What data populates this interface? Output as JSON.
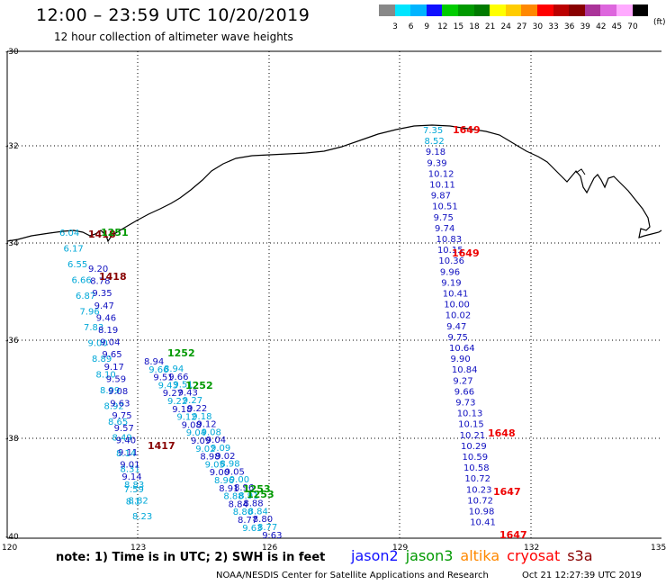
{
  "header": {
    "title": "12:00 – 23:59 UTC 10/20/2019",
    "subtitle": "12 hour collection of altimeter wave heights"
  },
  "colorbar": {
    "unit": "(ft)",
    "bins": [
      {
        "color": "#888888",
        "label": "3"
      },
      {
        "color": "#00e5ff",
        "label": "6"
      },
      {
        "color": "#00b4ff",
        "label": "9"
      },
      {
        "color": "#1010ff",
        "label": "12"
      },
      {
        "color": "#00cc00",
        "label": "15"
      },
      {
        "color": "#009900",
        "label": "18"
      },
      {
        "color": "#007a00",
        "label": "21"
      },
      {
        "color": "#ffff00",
        "label": "24"
      },
      {
        "color": "#ffcc00",
        "label": "27"
      },
      {
        "color": "#ff8800",
        "label": "30"
      },
      {
        "color": "#ff0000",
        "label": "33"
      },
      {
        "color": "#bb0000",
        "label": "36"
      },
      {
        "color": "#880000",
        "label": "39"
      },
      {
        "color": "#aa3399",
        "label": "42"
      },
      {
        "color": "#dd66dd",
        "label": "45"
      },
      {
        "color": "#ffaaff",
        "label": "70"
      },
      {
        "color": "#000000",
        "label": ""
      }
    ]
  },
  "map": {
    "lat_labels": [
      "-30",
      "-32",
      "-34",
      "-36",
      "-38",
      "-40"
    ],
    "lon_labels": [
      "120",
      "123",
      "126",
      "129",
      "132",
      "135"
    ]
  },
  "tracks": {
    "east_values": [
      "7.35",
      "8.52",
      "9.18",
      "9.39",
      "10.12",
      "10.11",
      "9.87",
      "10.51",
      "9.75",
      "9.74",
      "10.83",
      "10.15",
      "10.36",
      "9.96",
      "9.19",
      "10.41",
      "10.00",
      "10.02",
      "9.47",
      "9.75",
      "10.64",
      "9.90",
      "10.84",
      "9.27",
      "9.66",
      "9.73",
      "10.13",
      "10.15",
      "10.21",
      "10.29",
      "10.59",
      "10.58",
      "10.72",
      "10.23",
      "10.72",
      "10.98",
      "10.41"
    ],
    "east_times": [
      "1649",
      "1649",
      "1648",
      "1647",
      "1647"
    ],
    "west_cyan_values": [
      "6.04",
      "6.17",
      "6.55",
      "6.66",
      "6.87",
      "7.96",
      "7.83",
      "9.00",
      "8.89",
      "8.10",
      "8.99",
      "8.92",
      "8.65",
      "8.49",
      "8.14",
      "8.31",
      "8.83",
      "8.82",
      "8.23"
    ],
    "west_blue_values": [
      "9.20",
      "8.78",
      "9.35",
      "9.47",
      "9.46",
      "8.19",
      "9.04",
      "9.65",
      "9.17",
      "9.59",
      "9.08",
      "9.63",
      "9.75",
      "9.57",
      "9.40",
      "9.11",
      "9.01",
      "9.14",
      "7.59",
      "8.1"
    ],
    "west_times": [
      "1418",
      "1251",
      "1418",
      "1252",
      "1252",
      "1417",
      "1253",
      "1253"
    ],
    "diag_values": [
      "8.94",
      "9.66",
      "9.51",
      "9.43",
      "9.27",
      "9.22",
      "9.18",
      "9.12",
      "9.08",
      "9.04",
      "9.09",
      "9.02",
      "8.98",
      "9.05",
      "9.00",
      "8.96",
      "8.91",
      "8.88",
      "8.84",
      "8.80",
      "8.77",
      "9.63"
    ]
  },
  "footer": {
    "note": "note: 1) Time is in UTC; 2) SWH is in feet",
    "satellites": [
      {
        "name": "jason2",
        "color": "#1010ff"
      },
      {
        "name": "jason3",
        "color": "#009900"
      },
      {
        "name": "altika",
        "color": "#ff8800"
      },
      {
        "name": "cryosat",
        "color": "#ff0000"
      },
      {
        "name": "s3a",
        "color": "#880000"
      }
    ],
    "credit": "NOAA/NESDIS Center for Satellite Applications and Research",
    "timestamp": "Oct 21 12:27:39 UTC 2019"
  }
}
